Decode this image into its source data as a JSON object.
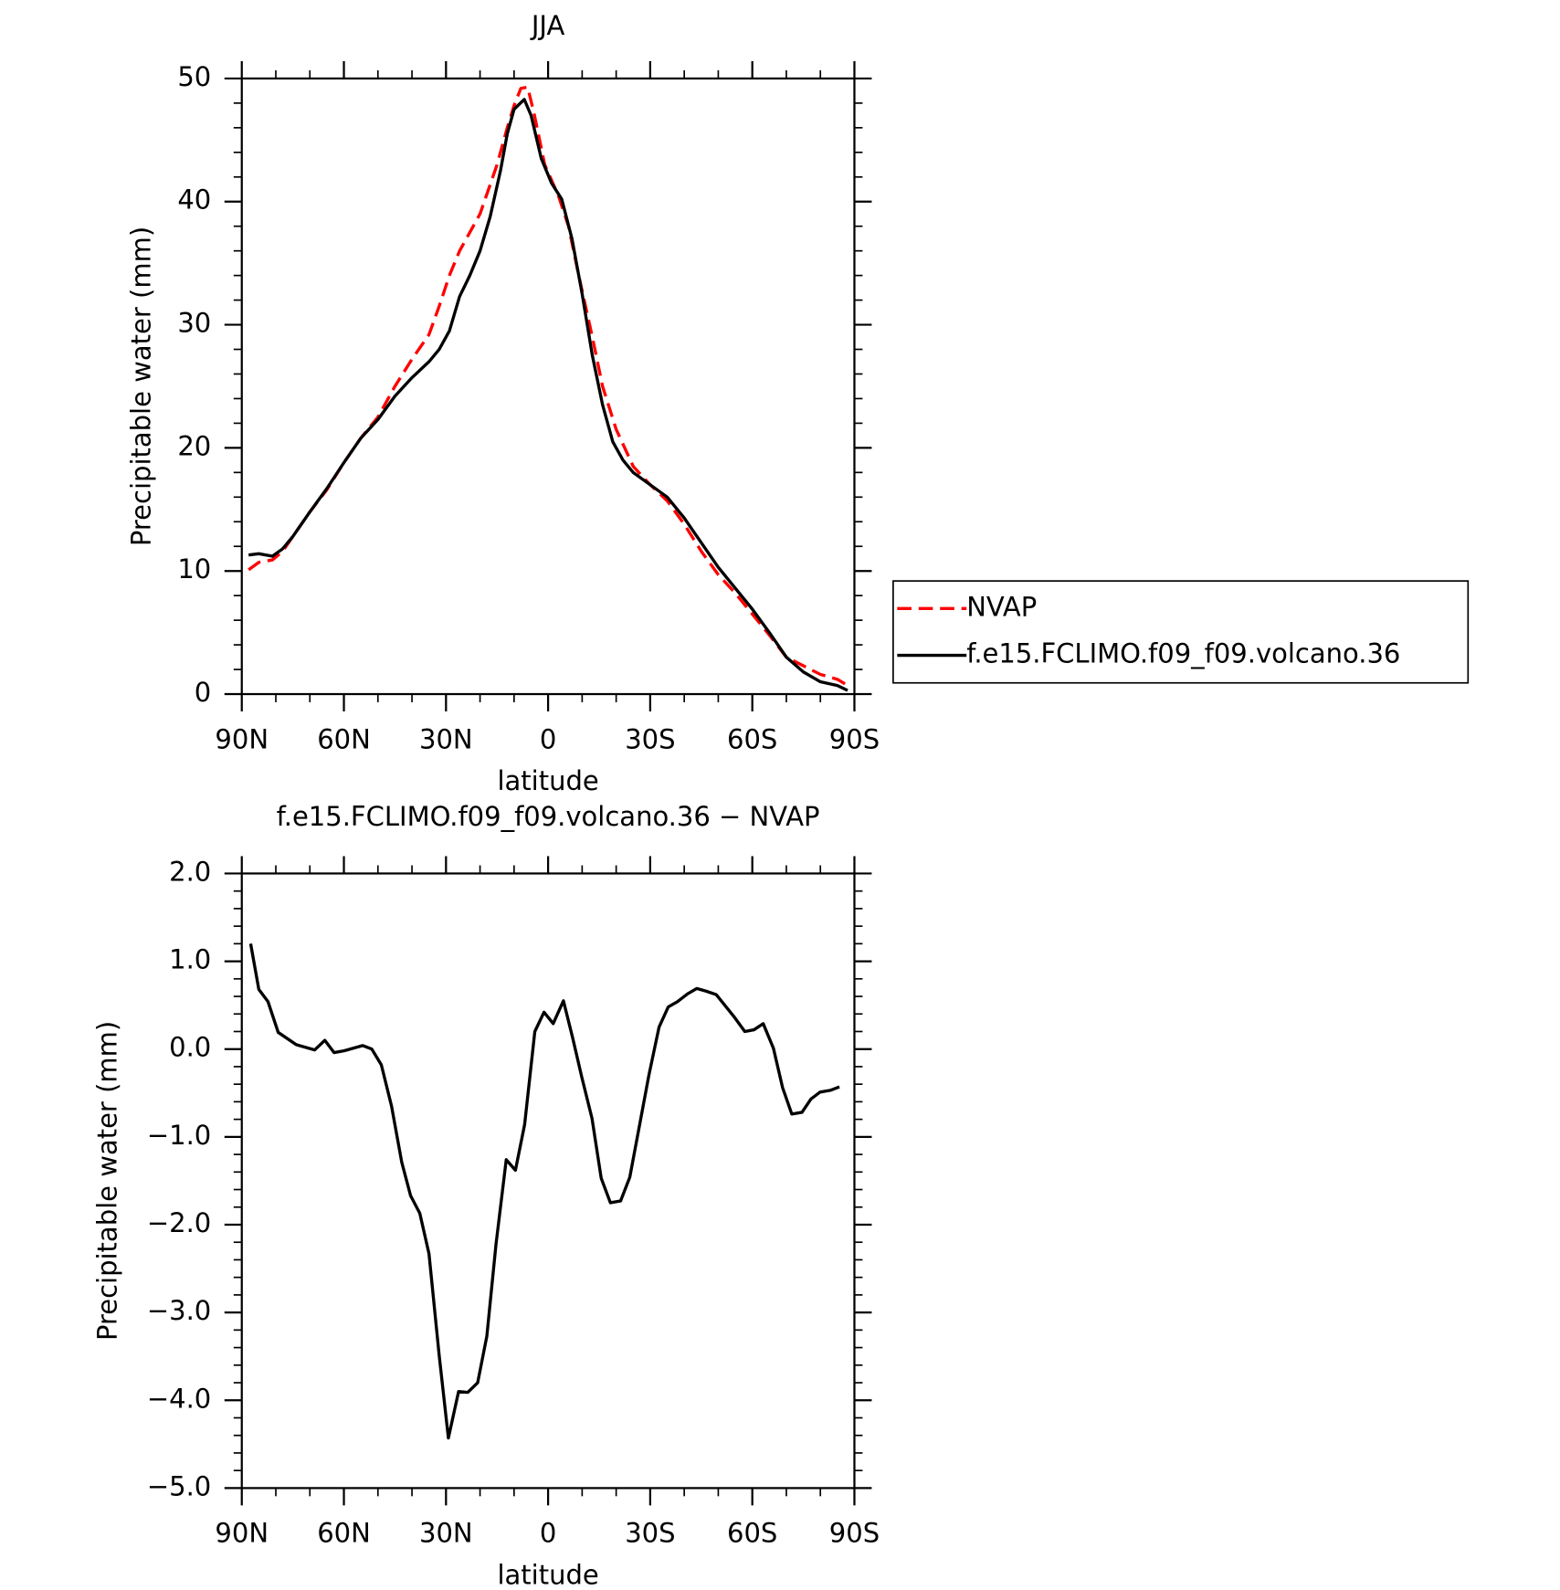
{
  "chart_data": [
    {
      "type": "line",
      "title": "JJA",
      "xlabel": "latitude",
      "ylabel": "Precipitable water (mm)",
      "xlim": [
        90,
        -90
      ],
      "xticks": [
        {
          "value": 90,
          "label": "90N"
        },
        {
          "value": 60,
          "label": "60N"
        },
        {
          "value": 30,
          "label": "30N"
        },
        0,
        {
          "value": -30,
          "label": "30S"
        },
        {
          "value": -60,
          "label": "60S"
        },
        {
          "value": -90,
          "label": "90S"
        }
      ],
      "ylim": [
        0,
        50
      ],
      "yticks": [
        0,
        10,
        20,
        30,
        40,
        50
      ],
      "legend": "right",
      "series": [
        {
          "name": "NVAP",
          "color": "#ff0000",
          "line_style": "dashed",
          "x": [
            88,
            85,
            81,
            78,
            75,
            70,
            65,
            60,
            55,
            50,
            45,
            40,
            35,
            32,
            29,
            26,
            20,
            15,
            12,
            10,
            8,
            6,
            4,
            1,
            -3,
            -6,
            -9,
            -13,
            -16,
            -20,
            -25,
            -30,
            -35,
            -40,
            -45,
            -50,
            -55,
            -60,
            -65,
            -70,
            -75,
            -80,
            -85,
            -88
          ],
          "values": [
            10.1,
            10.7,
            10.9,
            11.6,
            12.8,
            14.8,
            16.6,
            18.8,
            20.8,
            22.5,
            25.0,
            27.2,
            29.2,
            31.5,
            34.0,
            36.0,
            39.0,
            43.0,
            46.0,
            47.8,
            49.2,
            49.3,
            47.0,
            43.0,
            40.5,
            38.0,
            34.0,
            29.0,
            25.0,
            21.5,
            18.5,
            17.0,
            15.7,
            13.8,
            11.6,
            9.7,
            8.2,
            6.5,
            4.8,
            3.0,
            2.3,
            1.6,
            1.2,
            0.7
          ]
        },
        {
          "name": "f.e15.FCLIMO.f09_f09.volcano.36",
          "color": "#000000",
          "line_style": "solid",
          "x": [
            88,
            85,
            81,
            78,
            75,
            70,
            65,
            60,
            55,
            50,
            45,
            40,
            35,
            32,
            29,
            26,
            23,
            20,
            17,
            14,
            12,
            10,
            7,
            5,
            2,
            -1,
            -4,
            -7,
            -10,
            -13,
            -16,
            -19,
            -22,
            -25,
            -30,
            -35,
            -40,
            -45,
            -50,
            -55,
            -60,
            -65,
            -70,
            -75,
            -80,
            -85,
            -88
          ],
          "values": [
            11.3,
            11.4,
            11.2,
            11.8,
            12.8,
            14.8,
            16.7,
            18.8,
            20.8,
            22.3,
            24.2,
            25.7,
            27.0,
            28.0,
            29.5,
            32.3,
            34.0,
            36.0,
            38.8,
            42.5,
            45.5,
            47.5,
            48.3,
            47.0,
            43.5,
            41.5,
            40.2,
            37.0,
            32.5,
            27.5,
            23.5,
            20.5,
            19.0,
            18.0,
            17.0,
            16.0,
            14.3,
            12.3,
            10.3,
            8.6,
            6.9,
            5.0,
            3.0,
            1.8,
            1.0,
            0.7,
            0.3
          ]
        }
      ]
    },
    {
      "type": "line",
      "title": "f.e15.FCLIMO.f09_f09.volcano.36 − NVAP",
      "xlabel": "latitude",
      "ylabel": "Precipitable water (mm)",
      "xlim": [
        90,
        -90
      ],
      "xticks": [
        {
          "value": 90,
          "label": "90N"
        },
        {
          "value": 60,
          "label": "60N"
        },
        {
          "value": 30,
          "label": "30N"
        },
        0,
        {
          "value": -30,
          "label": "30S"
        },
        {
          "value": -60,
          "label": "60S"
        },
        {
          "value": -90,
          "label": "90S"
        }
      ],
      "ylim": [
        -5,
        2
      ],
      "yticks": [
        {
          "value": -5,
          "label": "−5.0"
        },
        {
          "value": -4,
          "label": "−4.0"
        },
        {
          "value": -3,
          "label": "−3.0"
        },
        {
          "value": -2,
          "label": "−2.0"
        },
        {
          "value": -1,
          "label": "−1.0"
        },
        {
          "value": 0,
          "label": "0.0"
        },
        {
          "value": 1,
          "label": "1.0"
        },
        {
          "value": 2,
          "label": "2.0"
        }
      ],
      "series": [
        {
          "color": "#000000",
          "line_style": "solid",
          "x": [
            87.4,
            85,
            82.3,
            79.3,
            74,
            68.6,
            65.6,
            62.9,
            60,
            54.5,
            51.8,
            49,
            46,
            43,
            40.4,
            37.7,
            35,
            32,
            29.3,
            26.3,
            23.6,
            20.7,
            18,
            15.3,
            12.3,
            9.6,
            6.9,
            3.9,
            1.2,
            -1.5,
            -4.5,
            -7.2,
            -9.9,
            -12.9,
            -15.6,
            -18.3,
            -21.3,
            -24,
            -26.9,
            -29.6,
            -32.6,
            -35.3,
            -38,
            -41,
            -43.7,
            -46.4,
            -49.4,
            -52.1,
            -54.8,
            -57.8,
            -60.5,
            -63.2,
            -66.2,
            -68.9,
            -71.6,
            -74.6,
            -77.2,
            -79.9,
            -82.9,
            -85.6
          ],
          "values": [
            1.2,
            0.68,
            0.54,
            0.19,
            0.05,
            -0.01,
            0.1,
            -0.04,
            -0.02,
            0.04,
            0.0,
            -0.18,
            -0.65,
            -1.29,
            -1.67,
            -1.87,
            -2.33,
            -3.49,
            -4.43,
            -3.9,
            -3.91,
            -3.8,
            -3.27,
            -2.22,
            -1.26,
            -1.38,
            -0.86,
            0.2,
            0.42,
            0.29,
            0.55,
            0.13,
            -0.32,
            -0.79,
            -1.47,
            -1.75,
            -1.73,
            -1.46,
            -0.86,
            -0.3,
            0.25,
            0.48,
            0.54,
            0.63,
            0.69,
            0.66,
            0.62,
            0.49,
            0.36,
            0.2,
            0.22,
            0.29,
            0.01,
            -0.44,
            -0.74,
            -0.72,
            -0.57,
            -0.49,
            -0.47,
            -0.43
          ]
        }
      ]
    }
  ]
}
